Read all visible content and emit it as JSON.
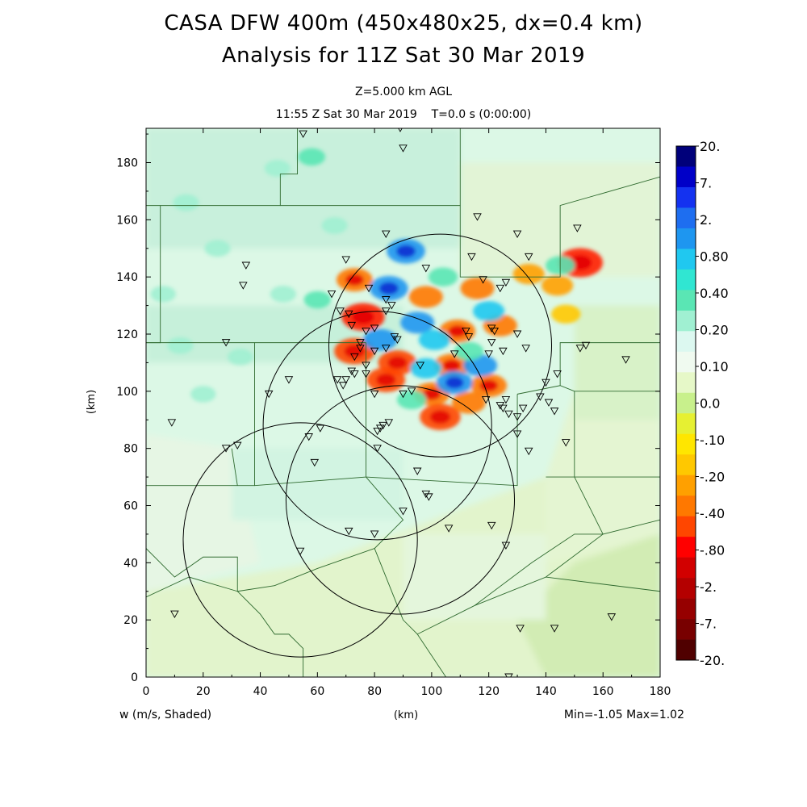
{
  "titles": {
    "line1": "CASA DFW 400m (450x480x25, dx=0.4 km)",
    "line2": "Analysis for 11Z Sat 30 Mar 2019",
    "level": "Z=5.000 km AGL",
    "time": "11:55 Z Sat 30 Mar 2019    T=0.0 s (0:00:00)"
  },
  "axes": {
    "xlabel": "(km)",
    "ylabel": "(km)",
    "xlim": [
      0,
      180
    ],
    "ylim": [
      0,
      192
    ],
    "xticks": [
      "0",
      "20",
      "40",
      "60",
      "80",
      "100",
      "120",
      "140",
      "160",
      "180"
    ],
    "yticks": [
      "0",
      "20",
      "40",
      "60",
      "80",
      "100",
      "120",
      "140",
      "160",
      "180"
    ]
  },
  "field_label": "w (m/s, Shaded)",
  "stats": "Min=-1.05 Max=1.02",
  "colorbar": {
    "labels": [
      "20.",
      "7.",
      "2.",
      "0.80",
      "0.40",
      "0.20",
      "0.10",
      "0.0",
      "-.10",
      "-.20",
      "-.40",
      "-.80",
      "-2.",
      "-7.",
      "-20."
    ],
    "colors": [
      "#00007a",
      "#0000c8",
      "#1432f0",
      "#1e6ef0",
      "#1e96f0",
      "#20c8f0",
      "#30e6d2",
      "#5ae6b4",
      "#a0f0d2",
      "#dcf8f0",
      "#f0faf0",
      "#e6f8c8",
      "#c8f08c",
      "#e6f032",
      "#ffe600",
      "#ffc800",
      "#ffa000",
      "#ff7800",
      "#ff4600",
      "#ff0000",
      "#d20000",
      "#b40000",
      "#960000",
      "#780000",
      "#500000"
    ]
  },
  "radar_rings": [
    {
      "cx": 103,
      "cy": 116,
      "r": 39
    },
    {
      "cx": 81,
      "cy": 88,
      "r": 40
    },
    {
      "cx": 89,
      "cy": 62,
      "r": 40
    },
    {
      "cx": 54,
      "cy": 48,
      "r": 41
    }
  ],
  "stations": [
    [
      55,
      190
    ],
    [
      89,
      192
    ],
    [
      90,
      185
    ],
    [
      35,
      144
    ],
    [
      34,
      137
    ],
    [
      116,
      161
    ],
    [
      130,
      155
    ],
    [
      151,
      157
    ],
    [
      134,
      147
    ],
    [
      70,
      146
    ],
    [
      84,
      155
    ],
    [
      78,
      136
    ],
    [
      98,
      143
    ],
    [
      114,
      147
    ],
    [
      84,
      132
    ],
    [
      126,
      138
    ],
    [
      118,
      139
    ],
    [
      124,
      136
    ],
    [
      65,
      134
    ],
    [
      86,
      130
    ],
    [
      68,
      128
    ],
    [
      71,
      127
    ],
    [
      84,
      128
    ],
    [
      72,
      123
    ],
    [
      80,
      122
    ],
    [
      77,
      121
    ],
    [
      87,
      119
    ],
    [
      88,
      118
    ],
    [
      75,
      117
    ],
    [
      113,
      119
    ],
    [
      121,
      122
    ],
    [
      125,
      114
    ],
    [
      130,
      120
    ],
    [
      133,
      115
    ],
    [
      28,
      117
    ],
    [
      75,
      115
    ],
    [
      80,
      114
    ],
    [
      73,
      112
    ],
    [
      77,
      109
    ],
    [
      84,
      115
    ],
    [
      121,
      117
    ],
    [
      122,
      121
    ],
    [
      120,
      113
    ],
    [
      72,
      107
    ],
    [
      70,
      104
    ],
    [
      67,
      104
    ],
    [
      69,
      102
    ],
    [
      73,
      106
    ],
    [
      50,
      104
    ],
    [
      77,
      106
    ],
    [
      96,
      109
    ],
    [
      108,
      113
    ],
    [
      112,
      121
    ],
    [
      144,
      106
    ],
    [
      152,
      115
    ],
    [
      154,
      116
    ],
    [
      168,
      111
    ],
    [
      90,
      99
    ],
    [
      93,
      100
    ],
    [
      80,
      99
    ],
    [
      43,
      99
    ],
    [
      119,
      97
    ],
    [
      126,
      97
    ],
    [
      132,
      94
    ],
    [
      130,
      91
    ],
    [
      125,
      94
    ],
    [
      124,
      95
    ],
    [
      127,
      92
    ],
    [
      130,
      85
    ],
    [
      138,
      98
    ],
    [
      140,
      103
    ],
    [
      141,
      96
    ],
    [
      143,
      93
    ],
    [
      85,
      89
    ],
    [
      83,
      88
    ],
    [
      82,
      87
    ],
    [
      81,
      86
    ],
    [
      9,
      89
    ],
    [
      28,
      80
    ],
    [
      32,
      81
    ],
    [
      57,
      84
    ],
    [
      61,
      87
    ],
    [
      81,
      80
    ],
    [
      134,
      79
    ],
    [
      147,
      82
    ],
    [
      59,
      75
    ],
    [
      95,
      72
    ],
    [
      98,
      64
    ],
    [
      99,
      63
    ],
    [
      90,
      58
    ],
    [
      121,
      53
    ],
    [
      106,
      52
    ],
    [
      71,
      51
    ],
    [
      80,
      50
    ],
    [
      126,
      46
    ],
    [
      54,
      44
    ],
    [
      10,
      22
    ],
    [
      131,
      17
    ],
    [
      143,
      17
    ],
    [
      163,
      21
    ],
    [
      127,
      0
    ]
  ],
  "hotspots": [
    {
      "x": 76,
      "y": 126,
      "v": -0.9
    },
    {
      "x": 73,
      "y": 114,
      "v": -0.8
    },
    {
      "x": 84,
      "y": 104,
      "v": -0.7
    },
    {
      "x": 88,
      "y": 110,
      "v": -0.7
    },
    {
      "x": 100,
      "y": 99,
      "v": -0.6
    },
    {
      "x": 103,
      "y": 91,
      "v": -0.8
    },
    {
      "x": 107,
      "y": 109,
      "v": -0.6
    },
    {
      "x": 109,
      "y": 121,
      "v": -0.6
    },
    {
      "x": 98,
      "y": 133,
      "v": -0.5
    },
    {
      "x": 116,
      "y": 136,
      "v": -0.5
    },
    {
      "x": 124,
      "y": 123,
      "v": -0.5
    },
    {
      "x": 120,
      "y": 102,
      "v": -0.6
    },
    {
      "x": 113,
      "y": 96,
      "v": -0.5
    },
    {
      "x": 73,
      "y": 139,
      "v": -0.6
    },
    {
      "x": 152,
      "y": 145,
      "v": -1.0
    },
    {
      "x": 134,
      "y": 141,
      "v": -0.4
    },
    {
      "x": 144,
      "y": 137,
      "v": -0.4
    },
    {
      "x": 147,
      "y": 127,
      "v": -0.3
    },
    {
      "x": 91,
      "y": 149,
      "v": 0.7
    },
    {
      "x": 85,
      "y": 136,
      "v": 0.7
    },
    {
      "x": 95,
      "y": 124,
      "v": 0.5
    },
    {
      "x": 101,
      "y": 118,
      "v": 0.4
    },
    {
      "x": 82,
      "y": 118,
      "v": 0.5
    },
    {
      "x": 108,
      "y": 103,
      "v": 0.6
    },
    {
      "x": 117,
      "y": 109,
      "v": 0.5
    },
    {
      "x": 98,
      "y": 108,
      "v": 0.4
    },
    {
      "x": 93,
      "y": 97,
      "v": 0.3
    },
    {
      "x": 120,
      "y": 128,
      "v": 0.4
    },
    {
      "x": 113,
      "y": 114,
      "v": 0.3
    },
    {
      "x": 145,
      "y": 144,
      "v": 0.3
    },
    {
      "x": 104,
      "y": 140,
      "v": 0.3
    },
    {
      "x": 58,
      "y": 182,
      "v": 0.2
    },
    {
      "x": 46,
      "y": 178,
      "v": 0.15
    },
    {
      "x": 25,
      "y": 150,
      "v": 0.15
    },
    {
      "x": 60,
      "y": 132,
      "v": 0.2
    },
    {
      "x": 48,
      "y": 134,
      "v": 0.15
    },
    {
      "x": 66,
      "y": 158,
      "v": 0.15
    },
    {
      "x": 12,
      "y": 116,
      "v": 0.15
    },
    {
      "x": 20,
      "y": 99,
      "v": 0.12
    },
    {
      "x": 14,
      "y": 166,
      "v": 0.15
    },
    {
      "x": 33,
      "y": 112,
      "v": 0.12
    },
    {
      "x": 6,
      "y": 134,
      "v": 0.12
    }
  ]
}
